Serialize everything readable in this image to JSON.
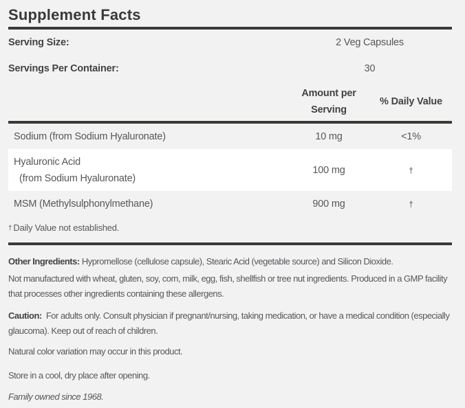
{
  "label": {
    "title": "Supplement Facts",
    "serving_size": {
      "label": "Serving Size:",
      "value": "2 Veg Capsules"
    },
    "servings_per_container": {
      "label": "Servings Per Container:",
      "value": "30"
    },
    "columns": {
      "amount_line1": "Amount per",
      "amount_line2": "Serving",
      "daily_value": "% Daily Value"
    },
    "rows": [
      {
        "name": "Sodium (from Sodium Hyaluronate)",
        "amount": "10 mg",
        "daily_value": "<1%"
      },
      {
        "name_line1": "Hyaluronic Acid",
        "name_line2": "(from Sodium Hyaluronate)",
        "amount": "100 mg",
        "daily_value": "†"
      },
      {
        "name": "MSM (Methylsulphonylmethane)",
        "amount": "900 mg",
        "daily_value": "†"
      }
    ],
    "footnote": {
      "symbol": "†",
      "text": "Daily Value not established."
    },
    "other_ingredients": {
      "lead": "Other Ingredients:",
      "text": "Hypromellose (cellulose capsule), Stearic Acid (vegetable source) and Silicon Dioxide."
    },
    "allergen_statement": "Not manufactured with wheat, gluten, soy, corn, milk, egg, fish, shellfish or tree nut ingredients. Produced in a GMP facility that processes other ingredients containing these allergens.",
    "caution": {
      "lead": "Caution:",
      "text": "For adults only. Consult physician if pregnant/nursing, taking medication, or have a medical condition (especially glaucoma). Keep out of reach of children."
    },
    "color_note": "Natural color variation may occur in this product.",
    "storage_note": "Store in a cool, dry place after opening.",
    "tagline": "Family owned since 1968.",
    "colors": {
      "background": "#f2f2f3",
      "row_highlight": "#ffffff",
      "dark_text_rules": "#3b3935",
      "body_text": "#56575b"
    }
  }
}
